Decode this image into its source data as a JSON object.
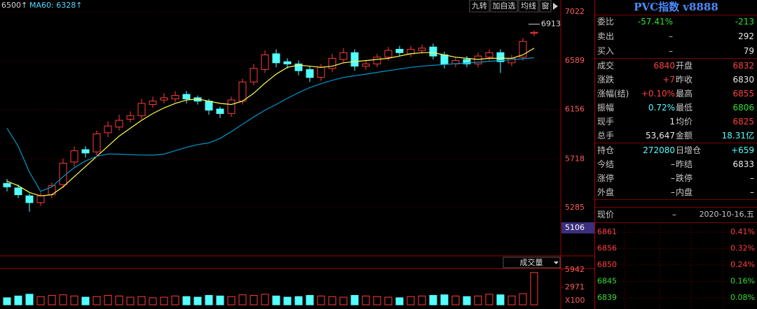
{
  "toolbar": {
    "ma_legend": [
      "6500↑",
      "MA60: 6328↑"
    ],
    "buttons": [
      "九转",
      "加自选",
      "均线",
      "窗"
    ]
  },
  "chart_data": [
    {
      "type": "candlestick",
      "open": [
        5500,
        5460,
        5390,
        5330,
        5400,
        5490,
        5690,
        5800,
        5780,
        5950,
        6000,
        6070,
        6100,
        6200,
        6240,
        6250,
        6290,
        6260,
        6230,
        6160,
        6120,
        6230,
        6400,
        6510,
        6650,
        6580,
        6560,
        6510,
        6440,
        6520,
        6600,
        6660,
        6540,
        6560,
        6620,
        6690,
        6650,
        6680,
        6710,
        6640,
        6560,
        6600,
        6560,
        6620,
        6660,
        6570,
        6620,
        6832
      ],
      "high": [
        5540,
        5490,
        5410,
        5420,
        5510,
        5720,
        5830,
        5830,
        5970,
        6050,
        6110,
        6140,
        6250,
        6270,
        6300,
        6320,
        6320,
        6280,
        6250,
        6180,
        6270,
        6430,
        6560,
        6680,
        6690,
        6610,
        6590,
        6540,
        6560,
        6650,
        6700,
        6690,
        6590,
        6650,
        6710,
        6720,
        6720,
        6730,
        6740,
        6670,
        6620,
        6630,
        6660,
        6690,
        6690,
        6640,
        6790,
        6855
      ],
      "low": [
        5430,
        5370,
        5250,
        5300,
        5370,
        5460,
        5650,
        5730,
        5750,
        5910,
        5970,
        6040,
        6070,
        6170,
        6210,
        6220,
        6210,
        6200,
        6110,
        6080,
        6090,
        6200,
        6370,
        6480,
        6530,
        6520,
        6460,
        6400,
        6410,
        6490,
        6570,
        6500,
        6510,
        6530,
        6590,
        6630,
        6620,
        6650,
        6600,
        6520,
        6530,
        6530,
        6530,
        6590,
        6480,
        6540,
        6590,
        6806
      ],
      "close": [
        5470,
        5400,
        5330,
        5390,
        5480,
        5680,
        5790,
        5770,
        5940,
        6010,
        6060,
        6100,
        6210,
        6230,
        6260,
        6280,
        6250,
        6230,
        6150,
        6120,
        6240,
        6400,
        6520,
        6640,
        6570,
        6560,
        6500,
        6440,
        6530,
        6610,
        6660,
        6540,
        6560,
        6620,
        6680,
        6660,
        6690,
        6700,
        6630,
        6560,
        6590,
        6560,
        6630,
        6660,
        6580,
        6610,
        6760,
        6840
      ],
      "up_color": "#ff3c3c",
      "down_color": "#54ffff",
      "lines": [
        {
          "color": "#ffff54",
          "values": [
            5520,
            5480,
            5420,
            5390,
            5400,
            5470,
            5560,
            5650,
            5740,
            5830,
            5920,
            5990,
            6060,
            6120,
            6170,
            6210,
            6240,
            6250,
            6230,
            6210,
            6200,
            6230,
            6300,
            6390,
            6470,
            6530,
            6550,
            6540,
            6530,
            6540,
            6570,
            6580,
            6590,
            6600,
            6610,
            6630,
            6650,
            6660,
            6660,
            6640,
            6620,
            6610,
            6600,
            6610,
            6610,
            6610,
            6640,
            6700
          ]
        },
        {
          "color": "#0096c8",
          "values": [
            5990,
            5830,
            5600,
            5430,
            5470,
            5560,
            5640,
            5700,
            5740,
            5762,
            5760,
            5756,
            5752,
            5751,
            5760,
            5790,
            5820,
            5845,
            5860,
            5900,
            5960,
            6025,
            6090,
            6150,
            6200,
            6255,
            6305,
            6350,
            6385,
            6415,
            6440,
            6455,
            6470,
            6485,
            6500,
            6515,
            6530,
            6540,
            6548,
            6555,
            6562,
            6568,
            6575,
            6582,
            6590,
            6598,
            6606,
            6615
          ]
        }
      ],
      "ylim": [
        4864,
        7096
      ],
      "yticks": [
        7022,
        6589,
        6156,
        5718,
        5285
      ],
      "grid": true,
      "max_marker": 6913,
      "crosshair": 5106
    },
    {
      "type": "bar",
      "title": "成交量",
      "values": [
        1200,
        1500,
        1800,
        1400,
        1600,
        1700,
        1500,
        1300,
        1400,
        1600,
        1500,
        1300,
        1400,
        1200,
        1300,
        1500,
        1400,
        1300,
        1600,
        1500,
        1400,
        1700,
        1600,
        1800,
        1500,
        1300,
        1400,
        1600,
        1500,
        1400,
        1300,
        1600,
        1500,
        1400,
        1300,
        1200,
        1400,
        1500,
        1600,
        1700,
        1500,
        1400,
        1500,
        1800,
        1700,
        1500,
        1900,
        5500
      ],
      "ylim": [
        0,
        6300
      ],
      "yticks": [
        5942,
        2971
      ],
      "unit_label": "X100"
    }
  ],
  "quote_panel": {
    "title": "PVC指数 v8888",
    "rows": [
      [
        "委比",
        "-57.41%",
        "-213"
      ],
      [
        "卖出",
        "–",
        "292"
      ],
      [
        "买入",
        "–",
        "79"
      ],
      [
        "成交",
        "6840",
        "开盘",
        "6832"
      ],
      [
        "涨跌",
        "+7",
        "昨收",
        "6830"
      ],
      [
        "涨幅(结)",
        "+0.10%",
        "最高",
        "6855"
      ],
      [
        "振幅",
        "0.72%",
        "最低",
        "6806"
      ],
      [
        "现手",
        "1",
        "均价",
        "6825"
      ],
      [
        "总手",
        "53,647",
        "金额",
        "18.31亿"
      ],
      [
        "持仓",
        "272080",
        "日增仓",
        "+659"
      ],
      [
        "今结",
        "–",
        "昨结",
        "6833"
      ],
      [
        "涨停",
        "–",
        "跌停",
        "–"
      ],
      [
        "外盘",
        "–",
        "内盘",
        "–"
      ]
    ],
    "price_row": [
      "现价",
      "–",
      "2020-10-16,五"
    ]
  },
  "mini_chart": {
    "price_labels": [
      "6861",
      "6856",
      "6850",
      "6845",
      "6839"
    ],
    "pct_labels": [
      "0.41%",
      "0.32%",
      "0.24%",
      "0.16%",
      "0.08%"
    ]
  }
}
